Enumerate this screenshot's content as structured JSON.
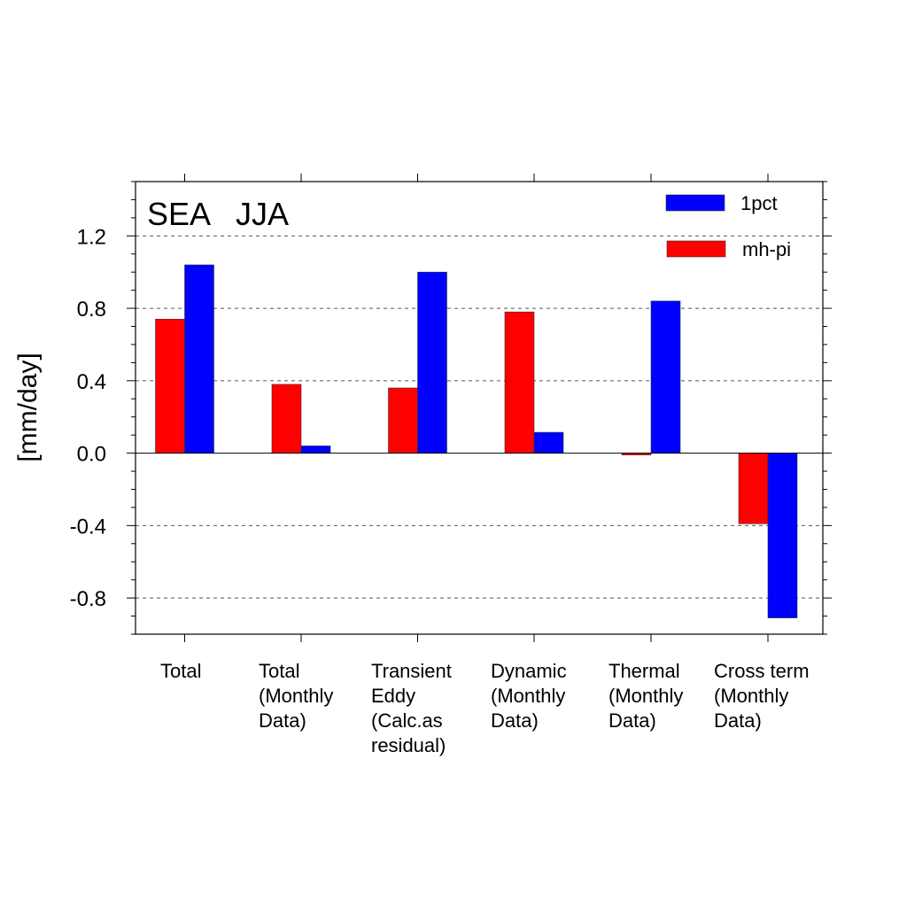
{
  "chart_data": {
    "type": "bar",
    "title": "SEA   JJA",
    "ylabel": "[mm/day]",
    "xlabel": "",
    "categories": [
      [
        "Total"
      ],
      [
        "Total",
        "(Monthly",
        "Data)"
      ],
      [
        "Transient",
        "Eddy",
        "(Calc.as",
        "residual)"
      ],
      [
        "Dynamic",
        "(Monthly",
        "Data)"
      ],
      [
        "Thermal",
        "(Monthly",
        "Data)"
      ],
      [
        "Cross term",
        "(Monthly",
        "Data)"
      ]
    ],
    "series": [
      {
        "name": "mh-pi",
        "color": "#ff0000",
        "values": [
          0.74,
          0.38,
          0.36,
          0.78,
          -0.01,
          -0.39
        ]
      },
      {
        "name": "1pct",
        "color": "#0000ff",
        "values": [
          1.04,
          0.04,
          1.0,
          0.115,
          0.84,
          -0.91
        ]
      }
    ],
    "legend": [
      {
        "name": "1pct",
        "color": "#0000ff"
      },
      {
        "name": "mh-pi",
        "color": "#ff0000"
      }
    ],
    "legend_position": "top-right",
    "ylim": [
      -1.0,
      1.5
    ],
    "yticks": [
      -0.8,
      -0.4,
      0.0,
      0.4,
      0.8,
      1.2
    ],
    "ytick_labels": [
      "-0.8",
      "-0.4",
      "0.0",
      "0.4",
      "0.8",
      "1.2"
    ],
    "grid": "horizontal dashed"
  }
}
